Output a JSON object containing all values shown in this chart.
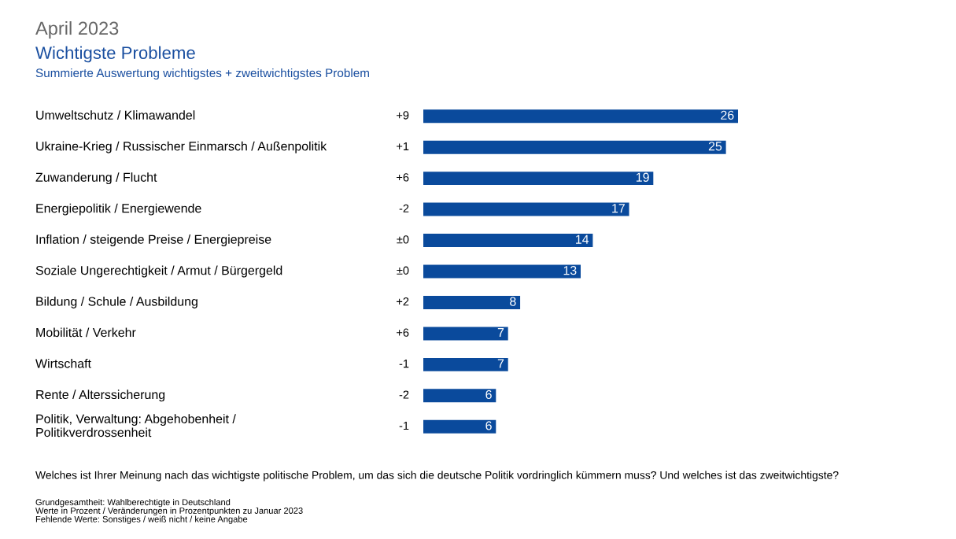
{
  "chart_data": {
    "type": "bar",
    "orientation": "horizontal",
    "title": "April 2023",
    "subtitle": "Wichtigste Probleme",
    "categories": [
      "Umweltschutz / Klimawandel",
      "Ukraine-Krieg / Russischer Einmarsch / Außenpolitik",
      "Zuwanderung / Flucht",
      "Energiepolitik / Energiewende",
      "Inflation / steigende Preise / Energiepreise",
      "Soziale Ungerechtigkeit / Armut / Bürgergeld",
      "Bildung / Schule / Ausbildung",
      "Mobilität / Verkehr",
      "Wirtschaft",
      "Rente / Alterssicherung",
      "Politik, Verwaltung: Abgehobenheit /\nPolitikverdrossenheit"
    ],
    "values": [
      26,
      25,
      19,
      17,
      14,
      13,
      8,
      7,
      7,
      6,
      6
    ],
    "color": "#0a4a9c",
    "data_labels": true,
    "annotations": [
      "+9",
      "+1",
      "+6",
      "-2",
      "±0",
      "±0",
      "+2",
      "+6",
      "-1",
      "-2",
      "-1",
      "Summierte Auswertung wichtigstes + zweitwichtigstes Problem",
      "Welches ist Ihrer Meinung nach das wichtigste politische Problem, um das sich die deutsche Politik vordringlich kümmern muss? Und welches ist das zweitwichtigste?",
      "Grundgesamtheit: Wahlberechtigte in Deutschland\nWerte in Prozent / Veränderungen in Prozentpunkten zu Januar 2023\nFehlende Werte: Sonstiges / weiß nicht / keine Angabe"
    ]
  }
}
